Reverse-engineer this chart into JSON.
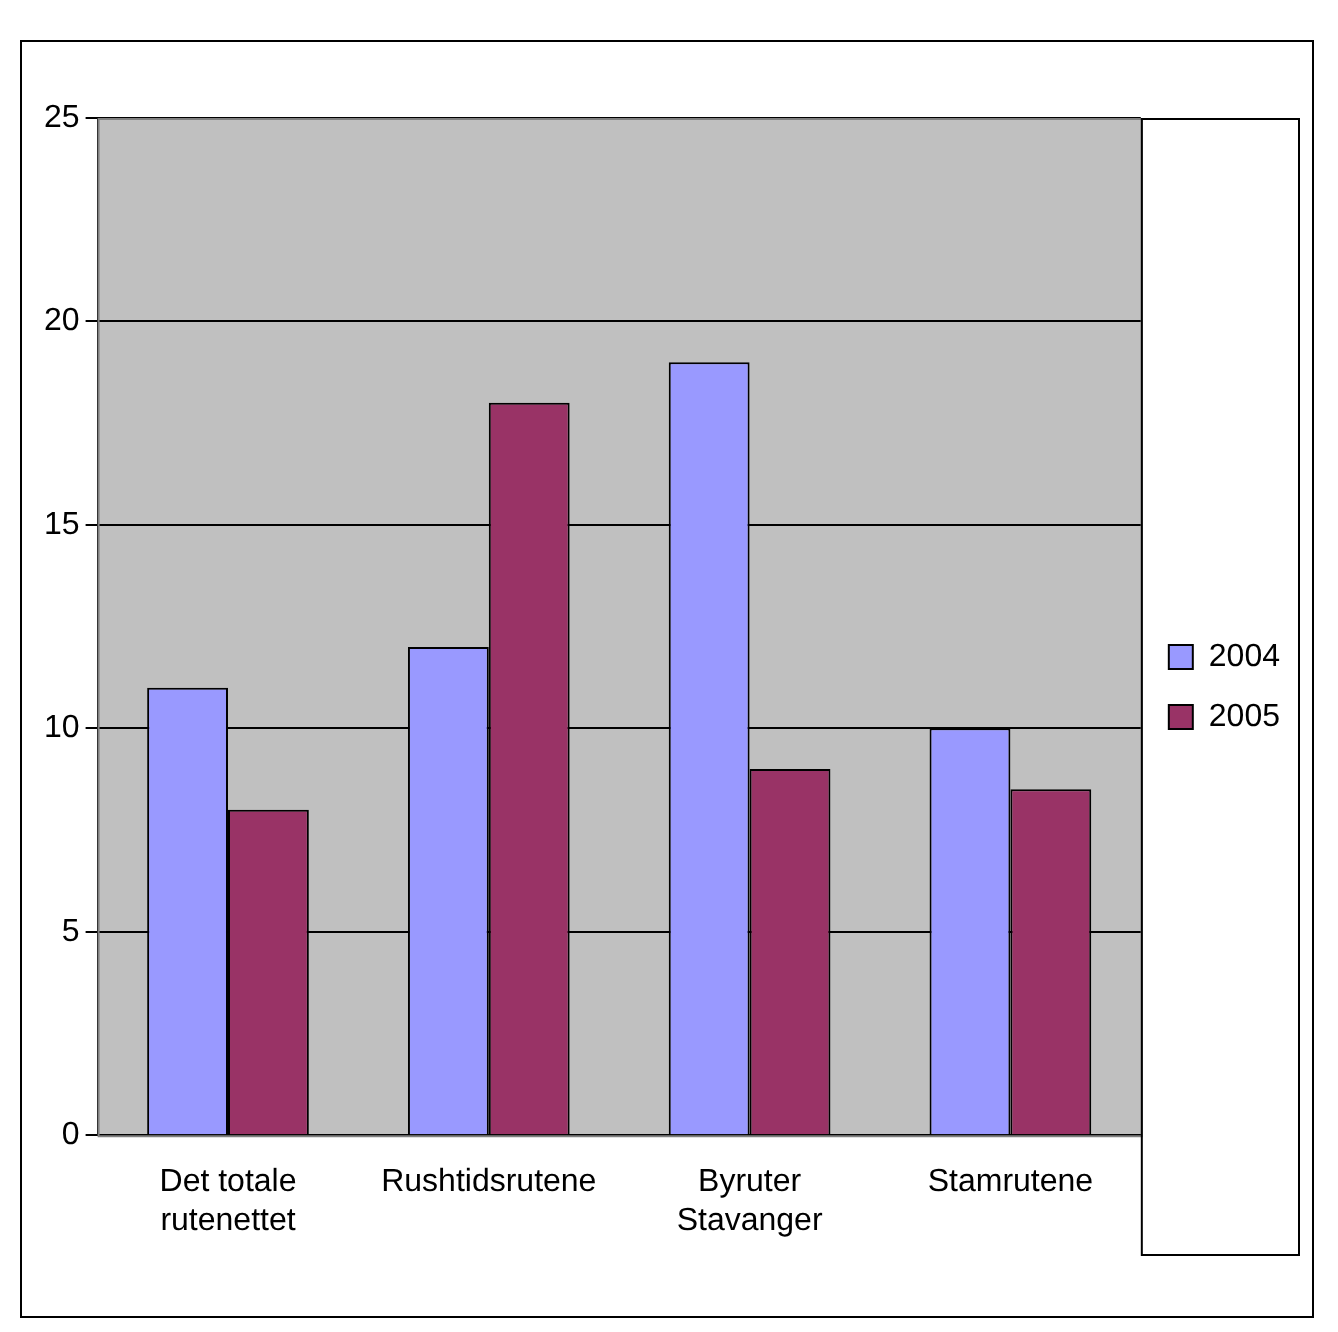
{
  "chart_data": {
    "type": "bar",
    "categories": [
      "Det totale rutenettet",
      "Rushtidsrutene",
      "Byruter Stavanger",
      "Stamrutene"
    ],
    "series": [
      {
        "name": "2004",
        "color": "#9999ff",
        "values": [
          11,
          12,
          19,
          10
        ]
      },
      {
        "name": "2005",
        "color": "#993366",
        "values": [
          8,
          18,
          9,
          8.5
        ]
      }
    ],
    "ylim": [
      0,
      25
    ],
    "yticks": [
      0,
      5,
      10,
      15,
      20,
      25
    ],
    "grid": "y",
    "legend": "right"
  }
}
